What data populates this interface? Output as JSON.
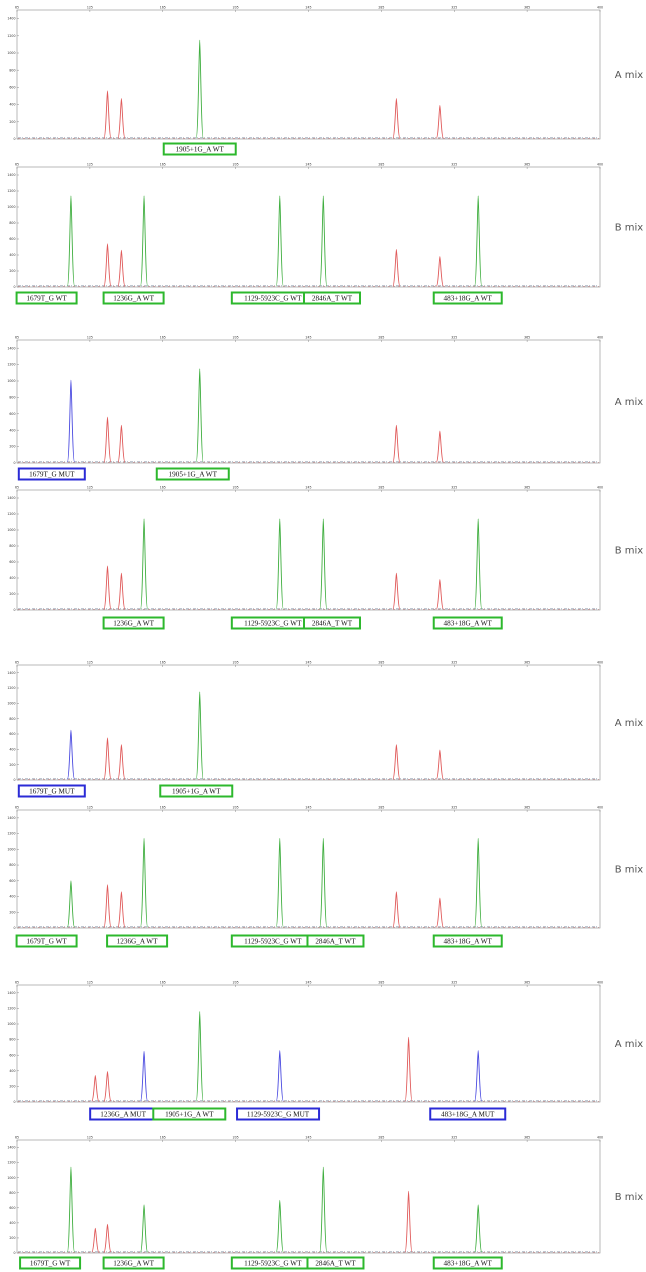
{
  "colors": {
    "wt_box": "#2db82d",
    "mut_box": "#2b2bd6",
    "red_peak": "#e05a5a",
    "green_peak": "#3fae3f",
    "blue_peak": "#4a4ae0",
    "baseline_noise": "#9aa3b5"
  },
  "chart_data": [
    {
      "type": "line",
      "mix_label": "A mix",
      "xlim": [
        65,
        400
      ],
      "ylim": [
        0,
        1500
      ],
      "x_ticks": [
        "65",
        "125",
        "165",
        "205",
        "245",
        "285",
        "325",
        "365",
        "400"
      ],
      "y_ticks": [
        "0",
        "200",
        "400",
        "600",
        "800",
        "1000",
        "1200",
        "1400"
      ],
      "peaks": [
        {
          "x": 117,
          "y": 560,
          "color": "red"
        },
        {
          "x": 125,
          "y": 470,
          "color": "red"
        },
        {
          "x": 170,
          "y": 1150,
          "color": "green"
        },
        {
          "x": 283,
          "y": 470,
          "color": "red"
        },
        {
          "x": 308,
          "y": 390,
          "color": "red"
        }
      ],
      "boxes": [
        {
          "label": "1905+1G_A WT",
          "x": 170,
          "status": "WT"
        }
      ]
    },
    {
      "type": "line",
      "mix_label": "B mix",
      "xlim": [
        65,
        400
      ],
      "ylim": [
        0,
        1500
      ],
      "x_ticks": [
        "65",
        "125",
        "165",
        "205",
        "245",
        "285",
        "325",
        "365",
        "400"
      ],
      "y_ticks": [
        "0",
        "200",
        "400",
        "600",
        "800",
        "1000",
        "1200",
        "1400"
      ],
      "peaks": [
        {
          "x": 96,
          "y": 1140,
          "color": "green"
        },
        {
          "x": 117,
          "y": 540,
          "color": "red"
        },
        {
          "x": 125,
          "y": 460,
          "color": "red"
        },
        {
          "x": 138,
          "y": 1140,
          "color": "green"
        },
        {
          "x": 216,
          "y": 1140,
          "color": "green"
        },
        {
          "x": 241,
          "y": 1140,
          "color": "green"
        },
        {
          "x": 283,
          "y": 470,
          "color": "red"
        },
        {
          "x": 308,
          "y": 380,
          "color": "red"
        },
        {
          "x": 330,
          "y": 1140,
          "color": "green"
        }
      ],
      "boxes": [
        {
          "label": "1679T_G WT",
          "x": 82,
          "status": "WT"
        },
        {
          "label": "1236G_A WT",
          "x": 132,
          "status": "WT"
        },
        {
          "label": "1129-5923C_G WT",
          "x": 212,
          "status": "WT"
        },
        {
          "label": "2846A_T WT",
          "x": 246,
          "status": "WT"
        },
        {
          "label": "483+18G_A WT",
          "x": 324,
          "status": "WT"
        }
      ]
    },
    {
      "type": "line",
      "mix_label": "A mix",
      "xlim": [
        65,
        400
      ],
      "ylim": [
        0,
        1500
      ],
      "x_ticks": [
        "65",
        "125",
        "165",
        "205",
        "245",
        "285",
        "325",
        "365",
        "400"
      ],
      "y_ticks": [
        "0",
        "200",
        "400",
        "600",
        "800",
        "1000",
        "1200",
        "1400"
      ],
      "peaks": [
        {
          "x": 96,
          "y": 1010,
          "color": "blue"
        },
        {
          "x": 117,
          "y": 560,
          "color": "red"
        },
        {
          "x": 125,
          "y": 460,
          "color": "red"
        },
        {
          "x": 170,
          "y": 1150,
          "color": "green"
        },
        {
          "x": 283,
          "y": 460,
          "color": "red"
        },
        {
          "x": 308,
          "y": 390,
          "color": "red"
        }
      ],
      "boxes": [
        {
          "label": "1679T_G MUT",
          "x": 85,
          "status": "MUT"
        },
        {
          "label": "1905+1G_A WT",
          "x": 166,
          "status": "WT"
        }
      ]
    },
    {
      "type": "line",
      "mix_label": "B mix",
      "xlim": [
        65,
        400
      ],
      "ylim": [
        0,
        1500
      ],
      "x_ticks": [
        "65",
        "125",
        "165",
        "205",
        "245",
        "285",
        "325",
        "365",
        "400"
      ],
      "y_ticks": [
        "0",
        "200",
        "400",
        "600",
        "800",
        "1000",
        "1200",
        "1400"
      ],
      "peaks": [
        {
          "x": 117,
          "y": 550,
          "color": "red"
        },
        {
          "x": 125,
          "y": 460,
          "color": "red"
        },
        {
          "x": 138,
          "y": 1140,
          "color": "green"
        },
        {
          "x": 216,
          "y": 1140,
          "color": "green"
        },
        {
          "x": 241,
          "y": 1140,
          "color": "green"
        },
        {
          "x": 283,
          "y": 460,
          "color": "red"
        },
        {
          "x": 308,
          "y": 380,
          "color": "red"
        },
        {
          "x": 330,
          "y": 1140,
          "color": "green"
        }
      ],
      "boxes": [
        {
          "label": "1236G_A WT",
          "x": 132,
          "status": "WT"
        },
        {
          "label": "1129-5923C_G WT",
          "x": 212,
          "status": "WT"
        },
        {
          "label": "2846A_T WT",
          "x": 246,
          "status": "WT"
        },
        {
          "label": "483+18G_A WT",
          "x": 324,
          "status": "WT"
        }
      ]
    },
    {
      "type": "line",
      "mix_label": "A mix",
      "xlim": [
        65,
        400
      ],
      "ylim": [
        0,
        1500
      ],
      "x_ticks": [
        "65",
        "125",
        "165",
        "205",
        "245",
        "285",
        "325",
        "365",
        "400"
      ],
      "y_ticks": [
        "0",
        "200",
        "400",
        "600",
        "800",
        "1000",
        "1200",
        "1400"
      ],
      "peaks": [
        {
          "x": 96,
          "y": 650,
          "color": "blue"
        },
        {
          "x": 117,
          "y": 550,
          "color": "red"
        },
        {
          "x": 125,
          "y": 460,
          "color": "red"
        },
        {
          "x": 170,
          "y": 1150,
          "color": "green"
        },
        {
          "x": 283,
          "y": 460,
          "color": "red"
        },
        {
          "x": 308,
          "y": 390,
          "color": "red"
        }
      ],
      "boxes": [
        {
          "label": "1679T_G MUT",
          "x": 85,
          "status": "MUT"
        },
        {
          "label": "1905+1G_A WT",
          "x": 168,
          "status": "WT"
        }
      ]
    },
    {
      "type": "line",
      "mix_label": "B mix",
      "xlim": [
        65,
        400
      ],
      "ylim": [
        0,
        1500
      ],
      "x_ticks": [
        "65",
        "125",
        "165",
        "205",
        "245",
        "285",
        "325",
        "365",
        "400"
      ],
      "y_ticks": [
        "0",
        "200",
        "400",
        "600",
        "800",
        "1000",
        "1200",
        "1400"
      ],
      "peaks": [
        {
          "x": 96,
          "y": 600,
          "color": "green"
        },
        {
          "x": 117,
          "y": 550,
          "color": "red"
        },
        {
          "x": 125,
          "y": 460,
          "color": "red"
        },
        {
          "x": 138,
          "y": 1140,
          "color": "green"
        },
        {
          "x": 216,
          "y": 1140,
          "color": "green"
        },
        {
          "x": 241,
          "y": 1140,
          "color": "green"
        },
        {
          "x": 283,
          "y": 460,
          "color": "red"
        },
        {
          "x": 308,
          "y": 380,
          "color": "red"
        },
        {
          "x": 330,
          "y": 1140,
          "color": "green"
        }
      ],
      "boxes": [
        {
          "label": "1679T_G WT",
          "x": 82,
          "status": "WT"
        },
        {
          "label": "1236G_A WT",
          "x": 134,
          "status": "WT"
        },
        {
          "label": "1129-5923C_G WT",
          "x": 212,
          "status": "WT"
        },
        {
          "label": "2846A_T WT",
          "x": 248,
          "status": "WT"
        },
        {
          "label": "483+18G_A WT",
          "x": 324,
          "status": "WT"
        }
      ]
    },
    {
      "type": "line",
      "mix_label": "A mix",
      "xlim": [
        65,
        400
      ],
      "ylim": [
        0,
        1500
      ],
      "x_ticks": [
        "65",
        "125",
        "165",
        "205",
        "245",
        "285",
        "325",
        "365",
        "400"
      ],
      "y_ticks": [
        "0",
        "200",
        "400",
        "600",
        "800",
        "1000",
        "1200",
        "1400"
      ],
      "peaks": [
        {
          "x": 110,
          "y": 340,
          "color": "red"
        },
        {
          "x": 117,
          "y": 390,
          "color": "red"
        },
        {
          "x": 138,
          "y": 650,
          "color": "blue"
        },
        {
          "x": 170,
          "y": 1160,
          "color": "green"
        },
        {
          "x": 216,
          "y": 660,
          "color": "blue"
        },
        {
          "x": 290,
          "y": 830,
          "color": "red"
        },
        {
          "x": 330,
          "y": 660,
          "color": "blue"
        }
      ],
      "boxes": [
        {
          "label": "1236G_A MUT",
          "x": 126,
          "status": "MUT"
        },
        {
          "label": "1905+1G_A WT",
          "x": 164,
          "status": "WT"
        },
        {
          "label": "1129-5923C_G MUT",
          "x": 215,
          "status": "MUT"
        },
        {
          "label": "483+18G_A MUT",
          "x": 324,
          "status": "MUT"
        }
      ]
    },
    {
      "type": "line",
      "mix_label": "B mix",
      "xlim": [
        65,
        400
      ],
      "ylim": [
        0,
        1500
      ],
      "x_ticks": [
        "65",
        "125",
        "165",
        "205",
        "245",
        "285",
        "325",
        "365",
        "400"
      ],
      "y_ticks": [
        "0",
        "200",
        "400",
        "600",
        "800",
        "1000",
        "1200",
        "1400"
      ],
      "peaks": [
        {
          "x": 96,
          "y": 1140,
          "color": "green"
        },
        {
          "x": 110,
          "y": 330,
          "color": "red"
        },
        {
          "x": 117,
          "y": 380,
          "color": "red"
        },
        {
          "x": 138,
          "y": 640,
          "color": "green"
        },
        {
          "x": 216,
          "y": 700,
          "color": "green"
        },
        {
          "x": 241,
          "y": 1140,
          "color": "green"
        },
        {
          "x": 290,
          "y": 820,
          "color": "red"
        },
        {
          "x": 330,
          "y": 640,
          "color": "green"
        }
      ],
      "boxes": [
        {
          "label": "1679T_G WT",
          "x": 84,
          "status": "WT"
        },
        {
          "label": "1236G_A WT",
          "x": 132,
          "status": "WT"
        },
        {
          "label": "1129-5923C_G WT",
          "x": 212,
          "status": "WT"
        },
        {
          "label": "2846A_T WT",
          "x": 248,
          "status": "WT"
        },
        {
          "label": "483+18G_A WT",
          "x": 324,
          "status": "WT"
        }
      ]
    }
  ]
}
